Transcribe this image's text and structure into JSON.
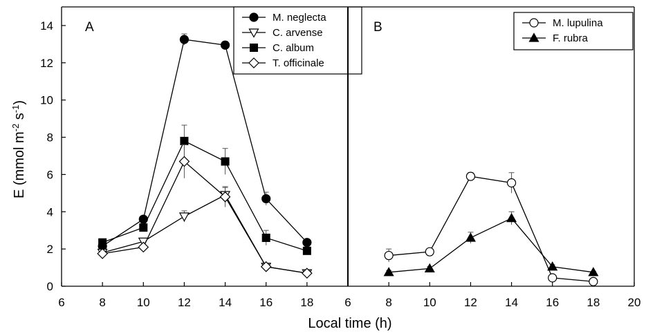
{
  "figure": {
    "ylabel_main": "E (mmol m",
    "ylabel_exp1": "-2",
    "ylabel_mid": " s",
    "ylabel_exp2": "-1",
    "ylabel_end": ")",
    "xlabel": "Local time (h)"
  },
  "chart_data": [
    {
      "type": "line",
      "panel": "A",
      "xlabel": "Local time (h)",
      "ylabel": "E (mmol m-2 s-1)",
      "xlim": [
        6,
        20
      ],
      "ylim": [
        0,
        15
      ],
      "x_ticks": [
        6,
        8,
        10,
        12,
        14,
        16,
        18
      ],
      "y_ticks": [
        0,
        2,
        4,
        6,
        8,
        10,
        12,
        14
      ],
      "grid": false,
      "legend_position": "top-right",
      "series": [
        {
          "name": "M. neglecta",
          "marker": "circle-filled",
          "x": [
            8,
            10,
            12,
            14,
            16,
            18
          ],
          "y": [
            2.15,
            3.6,
            13.25,
            12.95,
            4.7,
            2.35
          ],
          "err": [
            0.2,
            0.15,
            0.3,
            0.2,
            0.35,
            0.15
          ]
        },
        {
          "name": "C. arvense",
          "marker": "triangle-down-open",
          "x": [
            8,
            10,
            12,
            14,
            16,
            18
          ],
          "y": [
            1.8,
            2.4,
            3.75,
            4.9,
            1.05,
            0.7
          ],
          "err": [
            0.1,
            0.1,
            0.3,
            0.4,
            0.1,
            0.05
          ]
        },
        {
          "name": "C. album",
          "marker": "square-filled",
          "x": [
            8,
            10,
            12,
            14,
            16,
            18
          ],
          "y": [
            2.35,
            3.15,
            7.8,
            6.7,
            2.6,
            1.9
          ],
          "err": [
            0.1,
            0.2,
            0.85,
            0.7,
            0.4,
            0.2
          ]
        },
        {
          "name": "T. officinale",
          "marker": "diamond-open",
          "x": [
            8,
            10,
            12,
            14,
            16,
            18
          ],
          "y": [
            1.75,
            2.1,
            6.7,
            4.8,
            1.05,
            0.7
          ],
          "err": [
            0.1,
            0.1,
            0.9,
            0.55,
            0.1,
            0.05
          ]
        }
      ]
    },
    {
      "type": "line",
      "panel": "B",
      "xlabel": "Local time (h)",
      "xlim": [
        6,
        20
      ],
      "ylim": [
        0,
        15
      ],
      "x_ticks": [
        6,
        8,
        10,
        12,
        14,
        16,
        18,
        20
      ],
      "grid": false,
      "legend_position": "top-right",
      "series": [
        {
          "name": "M. lupulina",
          "marker": "circle-open",
          "x": [
            8,
            10,
            12,
            14,
            16,
            18
          ],
          "y": [
            1.65,
            1.85,
            5.9,
            5.55,
            0.45,
            0.25
          ],
          "err": [
            0.35,
            0.15,
            0.2,
            0.55,
            0.1,
            0.05
          ]
        },
        {
          "name": "F. rubra",
          "marker": "triangle-up-filled",
          "x": [
            8,
            10,
            12,
            14,
            16,
            18
          ],
          "y": [
            0.75,
            0.95,
            2.6,
            3.65,
            1.05,
            0.75
          ],
          "err": [
            0.1,
            0.1,
            0.3,
            0.35,
            0.1,
            0.05
          ]
        }
      ]
    }
  ]
}
